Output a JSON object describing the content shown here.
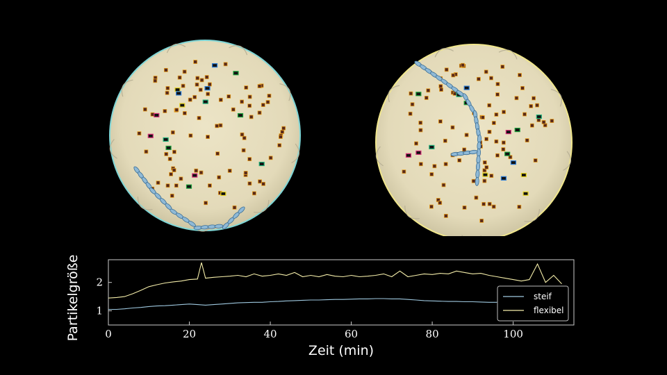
{
  "panels": [
    {
      "name": "steif",
      "rim_color": "#7fd6d6"
    },
    {
      "name": "flexibel",
      "rim_color": "#f0e68c"
    }
  ],
  "colors": {
    "background": "#000000",
    "dish": "#e9e2c4",
    "axis": "#cccccc",
    "particle": "#5a2a1a",
    "particle_outline": "#e8a020"
  },
  "chart_data": {
    "type": "line",
    "xlabel": "Zeit (min)",
    "ylabel": "Partikelgröße",
    "xlim": [
      0,
      115
    ],
    "ylim": [
      0.5,
      2.8
    ],
    "x_ticks": [
      0,
      20,
      40,
      60,
      80,
      100
    ],
    "y_ticks": [
      1,
      2
    ],
    "grid": false,
    "legend_position": "bottom-right",
    "series": [
      {
        "name": "steif",
        "color": "#9fc9e0",
        "x": [
          0,
          2,
          4,
          6,
          8,
          10,
          12,
          14,
          16,
          18,
          20,
          22,
          24,
          26,
          28,
          30,
          32,
          34,
          36,
          38,
          40,
          42,
          44,
          46,
          48,
          50,
          52,
          54,
          56,
          58,
          60,
          62,
          64,
          66,
          68,
          70,
          72,
          74,
          76,
          78,
          80,
          82,
          84,
          86,
          88,
          90,
          92,
          94,
          96
        ],
        "y": [
          1.05,
          1.05,
          1.07,
          1.1,
          1.12,
          1.15,
          1.17,
          1.18,
          1.2,
          1.22,
          1.24,
          1.22,
          1.2,
          1.22,
          1.24,
          1.26,
          1.28,
          1.29,
          1.3,
          1.3,
          1.32,
          1.33,
          1.35,
          1.36,
          1.37,
          1.38,
          1.38,
          1.39,
          1.4,
          1.4,
          1.41,
          1.42,
          1.42,
          1.43,
          1.43,
          1.42,
          1.42,
          1.4,
          1.38,
          1.36,
          1.35,
          1.34,
          1.33,
          1.33,
          1.32,
          1.32,
          1.31,
          1.3,
          1.3
        ]
      },
      {
        "name": "flexibel",
        "color": "#f5eeaa",
        "x": [
          0,
          2,
          4,
          6,
          8,
          10,
          12,
          14,
          16,
          18,
          20,
          22,
          23,
          24,
          26,
          28,
          30,
          32,
          34,
          36,
          38,
          40,
          42,
          44,
          46,
          48,
          50,
          52,
          54,
          56,
          58,
          60,
          62,
          64,
          66,
          68,
          70,
          72,
          74,
          76,
          78,
          80,
          82,
          84,
          86,
          88,
          90,
          92,
          94,
          96,
          98,
          100,
          102,
          104,
          106,
          108,
          110,
          112
        ],
        "y": [
          1.45,
          1.47,
          1.5,
          1.6,
          1.72,
          1.85,
          1.92,
          1.98,
          2.02,
          2.05,
          2.1,
          2.12,
          2.7,
          2.15,
          2.18,
          2.2,
          2.22,
          2.25,
          2.2,
          2.3,
          2.22,
          2.25,
          2.3,
          2.25,
          2.35,
          2.2,
          2.25,
          2.2,
          2.28,
          2.22,
          2.2,
          2.25,
          2.2,
          2.22,
          2.25,
          2.3,
          2.2,
          2.4,
          2.2,
          2.25,
          2.3,
          2.28,
          2.32,
          2.3,
          2.4,
          2.35,
          2.3,
          2.32,
          2.25,
          2.2,
          2.15,
          2.1,
          2.05,
          2.1,
          2.65,
          2.0,
          2.25,
          1.95
        ]
      }
    ]
  }
}
